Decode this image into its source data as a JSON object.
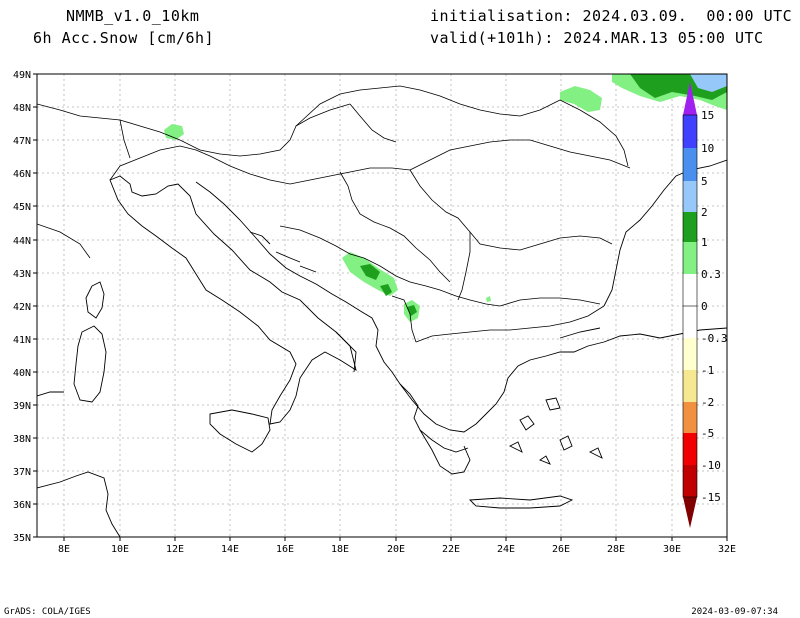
{
  "header": {
    "model": "NMMB_v1.0_10km",
    "field": "6h Acc.Snow [cm/6h]",
    "init": "initialisation: 2024.03.09.  00:00 UTC",
    "valid": "valid(+101h): 2024.MAR.13 05:00 UTC"
  },
  "footer": {
    "credit": "GrADS: COLA/IGES",
    "timestamp": "2024-03-09-07:34"
  },
  "map": {
    "lat_labels": [
      "49N",
      "48N",
      "47N",
      "46N",
      "45N",
      "44N",
      "43N",
      "42N",
      "41N",
      "40N",
      "39N",
      "38N",
      "37N",
      "36N",
      "35N"
    ],
    "lon_labels": [
      "8E",
      "10E",
      "12E",
      "14E",
      "16E",
      "18E",
      "20E",
      "22E",
      "24E",
      "26E",
      "28E",
      "30E",
      "32E"
    ],
    "lat_range": [
      35,
      49
    ],
    "lon_range": [
      7,
      32
    ],
    "grid": true
  },
  "colorbar": {
    "labels": [
      "15",
      "10",
      "5",
      "2",
      "1",
      "0.3",
      "0",
      "-0.3",
      "-1",
      "-2",
      "-5",
      "-10",
      "-15"
    ],
    "colors": {
      "gt15": "#a020f0",
      "c10_15": "#4040ff",
      "c5_10": "#4a8ff0",
      "c2_5": "#96c8fa",
      "c1_2": "#1ea01e",
      "c03_1": "#82f082",
      "c_neg": "#ffffd0",
      "c_neg2": "#f5e890",
      "c_neg3": "#f0c040",
      "c_neg4": "#f09040",
      "c_neg5": "#f00000",
      "c_neg6": "#c00000",
      "lt_neg15": "#800000"
    }
  }
}
